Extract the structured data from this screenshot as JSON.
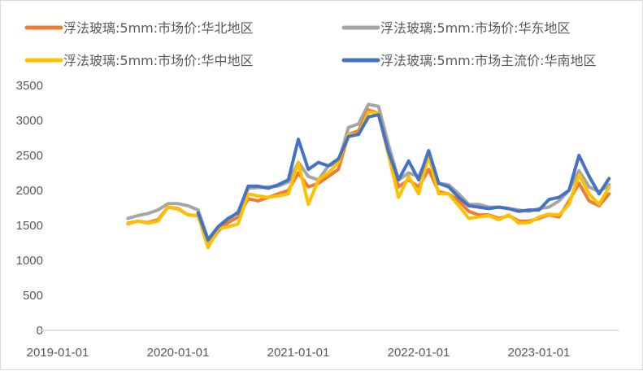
{
  "chart_data": {
    "type": "line",
    "title": "",
    "xlabel": "",
    "ylabel": "",
    "ylim": [
      0,
      3500
    ],
    "yticks": [
      "0",
      "500",
      "1000",
      "1500",
      "2000",
      "2500",
      "3000",
      "3500"
    ],
    "xlim": [
      "2019-01-01",
      "2023-10-01"
    ],
    "xticks": [
      "2019-01-01",
      "2020-01-01",
      "2021-01-01",
      "2022-01-01",
      "2023-01-01"
    ],
    "grid": false,
    "legend_position": "top",
    "x": [
      "2019-08",
      "2019-09",
      "2019-10",
      "2019-11",
      "2019-12",
      "2020-01",
      "2020-02",
      "2020-03",
      "2020-04",
      "2020-05",
      "2020-06",
      "2020-07",
      "2020-08",
      "2020-09",
      "2020-10",
      "2020-11",
      "2020-12",
      "2021-01",
      "2021-02",
      "2021-03",
      "2021-04",
      "2021-05",
      "2021-06",
      "2021-07",
      "2021-08",
      "2021-09",
      "2021-10",
      "2021-11",
      "2021-12",
      "2022-01",
      "2022-02",
      "2022-03",
      "2022-04",
      "2022-05",
      "2022-06",
      "2022-07",
      "2022-08",
      "2022-09",
      "2022-10",
      "2022-11",
      "2022-12",
      "2023-01",
      "2023-02",
      "2023-03",
      "2023-04",
      "2023-05",
      "2023-06",
      "2023-07",
      "2023-08"
    ],
    "series": [
      {
        "name": "浮法玻璃:5mm:市场价:华东地区",
        "color": "#a5a5a5",
        "values": [
          1600,
          1640,
          1670,
          1720,
          1810,
          1810,
          1780,
          1720,
          1300,
          1480,
          1570,
          1700,
          2030,
          2040,
          2050,
          2060,
          2120,
          2400,
          2200,
          2150,
          2350,
          2400,
          2900,
          2950,
          3230,
          3200,
          2650,
          2150,
          2250,
          2200,
          2500,
          2100,
          2080,
          1950,
          1800,
          1800,
          1760,
          1760,
          1740,
          1720,
          1700,
          1740,
          1760,
          1850,
          2000,
          2280,
          2050,
          1980,
          2080
        ]
      },
      {
        "name": "浮法玻璃:5mm:市场价:华北地区",
        "color": "#ed7d31",
        "values": [
          1530,
          1560,
          1540,
          1580,
          1760,
          1740,
          1650,
          1640,
          1200,
          1420,
          1540,
          1620,
          1880,
          1850,
          1900,
          1950,
          2000,
          2250,
          2050,
          2100,
          2200,
          2300,
          2800,
          2850,
          3150,
          3100,
          2550,
          2050,
          2150,
          2050,
          2300,
          1980,
          1950,
          1850,
          1700,
          1650,
          1650,
          1600,
          1640,
          1560,
          1560,
          1600,
          1650,
          1620,
          1850,
          2100,
          1850,
          1780,
          1950
        ]
      },
      {
        "name": "浮法玻璃:5mm:市场价:华中地区",
        "color": "#ffc000",
        "values": [
          1520,
          1560,
          1530,
          1560,
          1760,
          1730,
          1650,
          1640,
          1180,
          1450,
          1480,
          1520,
          1950,
          1920,
          1900,
          1920,
          1950,
          2400,
          1800,
          2150,
          2250,
          2400,
          2800,
          2800,
          3120,
          3100,
          2500,
          1900,
          2200,
          1950,
          2500,
          1950,
          1950,
          1780,
          1600,
          1620,
          1640,
          1580,
          1650,
          1530,
          1540,
          1620,
          1660,
          1650,
          1800,
          2230,
          1950,
          1800,
          2050
        ]
      },
      {
        "name": "浮法玻璃:5mm:市场主流价:华南地区",
        "color": "#4472c4",
        "values": [
          null,
          null,
          null,
          null,
          null,
          null,
          null,
          1680,
          1290,
          1480,
          1600,
          1680,
          2060,
          2060,
          2030,
          2080,
          2150,
          2730,
          2300,
          2400,
          2350,
          2450,
          2770,
          2800,
          3050,
          3080,
          2550,
          2150,
          2420,
          2150,
          2570,
          2100,
          2050,
          1900,
          1780,
          1760,
          1740,
          1760,
          1740,
          1700,
          1720,
          1720,
          1870,
          1900,
          2000,
          2500,
          2200,
          1950,
          2170
        ]
      }
    ],
    "legend_order": [
      1,
      0,
      2,
      3
    ]
  }
}
